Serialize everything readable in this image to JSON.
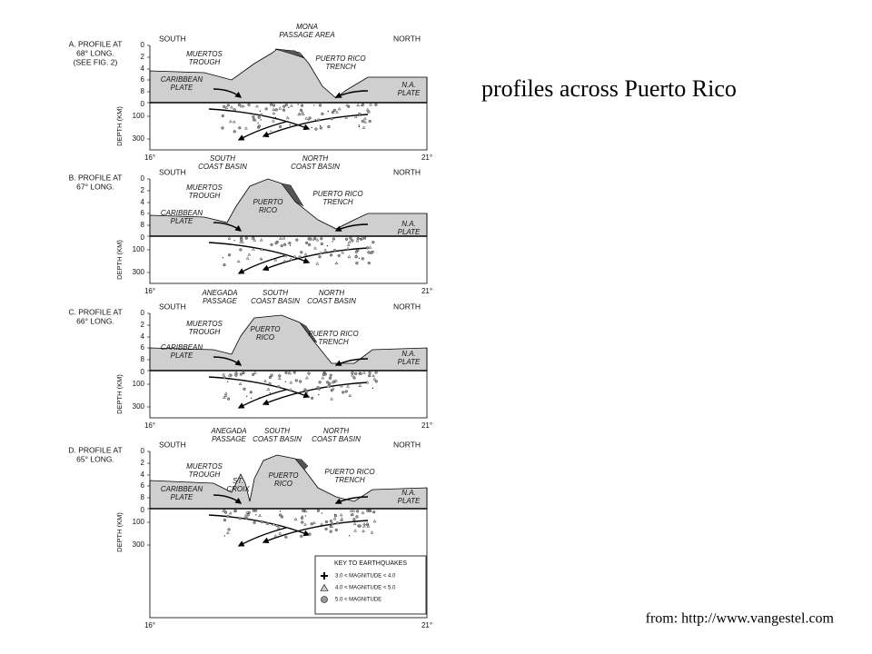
{
  "title": "profiles across Puerto Rico",
  "source": "from: http://www.vangestel.com",
  "panels": [
    {
      "label": [
        "A. PROFILE AT",
        "68° LONG.",
        "(SEE FIG. 2)"
      ],
      "south": "SOUTH",
      "north": "NORTH",
      "annotations": [
        {
          "lines": [
            "MONA",
            "PASSAGE AREA"
          ]
        },
        {
          "lines": [
            "MUERTOS",
            "TROUGH"
          ]
        },
        {
          "lines": [
            "PUERTO RICO",
            "TRENCH"
          ]
        },
        {
          "lines": [
            "CARIBBEAN",
            "PLATE"
          ]
        },
        {
          "lines": [
            "N.A.",
            "PLATE"
          ]
        }
      ],
      "elevation_ticks": [
        "0",
        "2",
        "4",
        "6",
        "8"
      ],
      "depth_ticks": [
        "0",
        "100",
        "300"
      ],
      "depth_axis": "DEPTH (KM)",
      "x_start": "16°",
      "x_end": "21°"
    },
    {
      "label": [
        "B. PROFILE AT",
        "67° LONG."
      ],
      "south": "SOUTH",
      "north": "NORTH",
      "annotations": [
        {
          "lines": [
            "SOUTH",
            "COAST BASIN"
          ]
        },
        {
          "lines": [
            "NORTH",
            "COAST BASIN"
          ]
        },
        {
          "lines": [
            "MUERTOS",
            "TROUGH"
          ]
        },
        {
          "lines": [
            "PUERTO",
            "RICO"
          ]
        },
        {
          "lines": [
            "PUERTO RICO",
            "TRENCH"
          ]
        },
        {
          "lines": [
            "CARIBBEAN",
            "PLATE"
          ]
        },
        {
          "lines": [
            "N.A.",
            "PLATE"
          ]
        }
      ],
      "elevation_ticks": [
        "0",
        "2",
        "4",
        "6",
        "8"
      ],
      "depth_ticks": [
        "0",
        "100",
        "300"
      ],
      "depth_axis": "DEPTH (KM)",
      "x_start": "16°",
      "x_end": "21°"
    },
    {
      "label": [
        "C. PROFILE AT",
        "66° LONG."
      ],
      "south": "SOUTH",
      "north": "NORTH",
      "annotations": [
        {
          "lines": [
            "ANEGADA",
            "PASSAGE"
          ]
        },
        {
          "lines": [
            "SOUTH",
            "COAST BASIN"
          ]
        },
        {
          "lines": [
            "NORTH",
            "COAST BASIN"
          ]
        },
        {
          "lines": [
            "MUERTOS",
            "TROUGH"
          ]
        },
        {
          "lines": [
            "PUERTO",
            "RICO"
          ]
        },
        {
          "lines": [
            "PUERTO RICO",
            "TRENCH"
          ]
        },
        {
          "lines": [
            "CARIBBEAN",
            "PLATE"
          ]
        },
        {
          "lines": [
            "N.A.",
            "PLATE"
          ]
        }
      ],
      "elevation_ticks": [
        "0",
        "2",
        "4",
        "6",
        "8"
      ],
      "depth_ticks": [
        "0",
        "100",
        "300"
      ],
      "depth_axis": "DEPTH (KM)",
      "x_start": "16°",
      "x_end": "21°"
    },
    {
      "label": [
        "D. PROFILE AT",
        "65° LONG."
      ],
      "south": "SOUTH",
      "north": "NORTH",
      "annotations": [
        {
          "lines": [
            "ANEGADA",
            "PASSAGE"
          ]
        },
        {
          "lines": [
            "SOUTH",
            "COAST BASIN"
          ]
        },
        {
          "lines": [
            "NORTH",
            "COAST BASIN"
          ]
        },
        {
          "lines": [
            "MUERTOS",
            "TROUGH"
          ]
        },
        {
          "lines": [
            "ST.",
            "CROIX"
          ]
        },
        {
          "lines": [
            "PUERTO",
            "RICO"
          ]
        },
        {
          "lines": [
            "PUERTO RICO",
            "TRENCH"
          ]
        },
        {
          "lines": [
            "CARIBBEAN",
            "PLATE"
          ]
        },
        {
          "lines": [
            "N.A.",
            "PLATE"
          ]
        }
      ],
      "elevation_ticks": [
        "0",
        "2",
        "4",
        "6",
        "8"
      ],
      "depth_ticks": [
        "0",
        "100",
        "300"
      ],
      "depth_axis": "DEPTH (KM)",
      "x_start": "16°",
      "x_end": "21°"
    }
  ],
  "key": {
    "title": "KEY TO EARTHQUAKES",
    "entries": [
      "3.0 < MAGNITUDE < 4.0",
      "4.0 < MAGNITUDE < 5.0",
      "5.0 < MAGNITUDE"
    ]
  }
}
